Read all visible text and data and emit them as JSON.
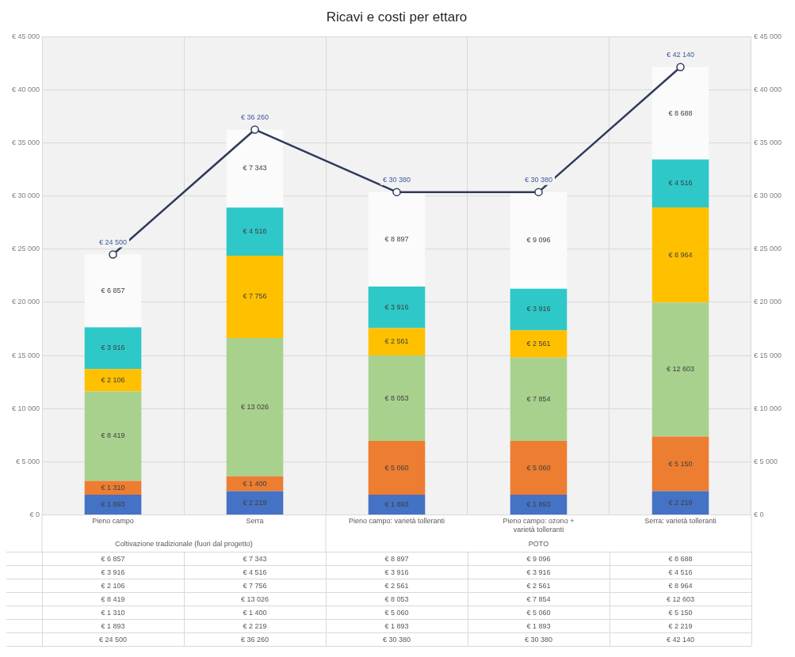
{
  "chart_data": {
    "type": "bar",
    "title": "Ricavi e costi per ettaro",
    "stacked": true,
    "grid": true,
    "legend": false,
    "categories": [
      "Pieno campo",
      "Serra",
      "Pieno campo: varietà tolleranti",
      "Pieno campo: ozono + varietà tolleranti",
      "Serra: varietà tolleranti"
    ],
    "ylim": [
      0,
      45000
    ],
    "yticks": [
      {
        "value": 0,
        "label": "€ 0"
      },
      {
        "value": 5000,
        "label": "€ 5 000"
      },
      {
        "value": 10000,
        "label": "€ 10 000"
      },
      {
        "value": 15000,
        "label": "€ 15 000"
      },
      {
        "value": 20000,
        "label": "€ 20 000"
      },
      {
        "value": 25000,
        "label": "€ 25 000"
      },
      {
        "value": 30000,
        "label": "€ 30 000"
      },
      {
        "value": 35000,
        "label": "€ 35 000"
      },
      {
        "value": 40000,
        "label": "€ 40 000"
      },
      {
        "value": 45000,
        "label": "€ 45 000"
      }
    ],
    "y2lim": [
      0,
      45000
    ],
    "y2ticks": [
      {
        "value": 0,
        "label": "€ 0"
      },
      {
        "value": 5000,
        "label": "€ 5 000"
      },
      {
        "value": 10000,
        "label": "€ 10 000"
      },
      {
        "value": 15000,
        "label": "€ 15 000"
      },
      {
        "value": 20000,
        "label": "€ 20 000"
      },
      {
        "value": 25000,
        "label": "€ 25 000"
      },
      {
        "value": 30000,
        "label": "€ 30 000"
      },
      {
        "value": 35000,
        "label": "€ 35 000"
      },
      {
        "value": 40000,
        "label": "€ 40 000"
      },
      {
        "value": 45000,
        "label": "€ 45 000"
      }
    ],
    "series": [
      {
        "color": "#4472c4",
        "values": [
          1893,
          2219,
          1893,
          1893,
          2219
        ],
        "value_labels": [
          "€ 1 893",
          "€ 2 219",
          "€ 1 893",
          "€ 1 893",
          "€ 2 219"
        ]
      },
      {
        "color": "#ed7d31",
        "values": [
          1310,
          1400,
          5060,
          5060,
          5150
        ],
        "value_labels": [
          "€ 1 310",
          "€ 1 400",
          "€ 5 060",
          "€ 5 060",
          "€ 5 150"
        ]
      },
      {
        "color": "#a9d18e",
        "values": [
          8419,
          13026,
          8053,
          7854,
          12603
        ],
        "value_labels": [
          "€ 8 419",
          "€ 13 026",
          "€ 8 053",
          "€ 7 854",
          "€ 12 603"
        ]
      },
      {
        "color": "#ffc000",
        "values": [
          2106,
          7756,
          2561,
          2561,
          8964
        ],
        "value_labels": [
          "€ 2 106",
          "€ 7 756",
          "€ 2 561",
          "€ 2 561",
          "€ 8 964"
        ]
      },
      {
        "color": "#2ec8c8",
        "values": [
          3916,
          4516,
          3916,
          3916,
          4516
        ],
        "value_labels": [
          "€ 3 916",
          "€ 4 516",
          "€ 3 916",
          "€ 3 916",
          "€ 4 516"
        ]
      },
      {
        "color": "#fbfbfb",
        "values": [
          6857,
          7343,
          8897,
          9096,
          8688
        ],
        "value_labels": [
          "€ 6 857",
          "€ 7 343",
          "€ 8 897",
          "€ 9 096",
          "€ 8 688"
        ]
      },
      {
        "type": "line",
        "color": "#2f3b5c",
        "marker": "circle",
        "values": [
          24500,
          36260,
          30380,
          30380,
          42140
        ],
        "value_labels": [
          "€ 24 500",
          "€ 36 260",
          "€ 30 380",
          "€ 30 380",
          "€ 42 140"
        ]
      }
    ],
    "annotations": [
      "Coltivazione tradizionale (fuori dal progetto)",
      "POTO"
    ]
  }
}
